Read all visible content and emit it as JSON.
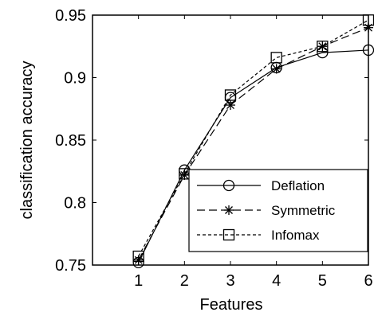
{
  "chart_data": {
    "type": "line",
    "xlabel": "Features",
    "ylabel": "classification accuracy",
    "xlim": [
      0,
      6
    ],
    "ylim": [
      0.75,
      0.95
    ],
    "x": [
      1,
      2,
      3,
      4,
      5,
      6
    ],
    "x_ticks": [
      "1",
      "2",
      "3",
      "4",
      "5",
      "6"
    ],
    "y_ticks": [
      {
        "value": 0.75,
        "label": "0.75"
      },
      {
        "value": 0.8,
        "label": "0.8"
      },
      {
        "value": 0.85,
        "label": "0.85"
      },
      {
        "value": 0.9,
        "label": "0.9"
      },
      {
        "value": 0.95,
        "label": "0.95"
      }
    ],
    "grid": false,
    "legend_position": "bottom-right",
    "series": [
      {
        "name": "Deflation",
        "line_style": "solid",
        "marker": "circle",
        "values": [
          0.752,
          0.826,
          0.884,
          0.908,
          0.92,
          0.922
        ]
      },
      {
        "name": "Symmetric",
        "line_style": "dashed",
        "marker": "asterisk",
        "values": [
          0.754,
          0.822,
          0.878,
          0.907,
          0.925,
          0.94
        ]
      },
      {
        "name": "Infomax",
        "line_style": "dotted",
        "marker": "square",
        "values": [
          0.757,
          0.823,
          0.886,
          0.916,
          0.925,
          0.946
        ]
      }
    ]
  }
}
